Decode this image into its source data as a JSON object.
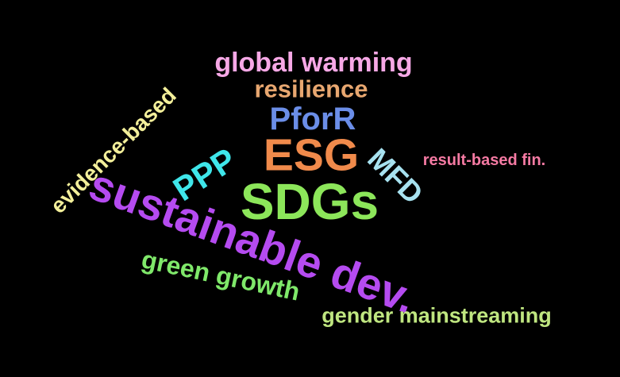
{
  "word_cloud": {
    "background": "#000000",
    "words": {
      "global_warming": {
        "text": "global warming",
        "color": "#f7a8e6"
      },
      "resilience": {
        "text": "resilience",
        "color": "#e8a770"
      },
      "pforr": {
        "text": "PforR",
        "color": "#6b8ee8"
      },
      "esg": {
        "text": "ESG",
        "color": "#f08a4b"
      },
      "sdgs": {
        "text": "SDGs",
        "color": "#8ce65a"
      },
      "ppp": {
        "text": "PPP",
        "color": "#3fe6ea"
      },
      "mfd": {
        "text": "MFD",
        "color": "#a7e2f0"
      },
      "result_based": {
        "text": "result-based fin.",
        "color": "#f57aa3"
      },
      "evidence_based": {
        "text": "evidence-based",
        "color": "#f3ef9a"
      },
      "sustainable_dev": {
        "text": "sustainable dev.",
        "color": "#b54bf0"
      },
      "green_growth": {
        "text": "green growth",
        "color": "#7fe86a"
      },
      "gender_mainstreaming": {
        "text": "gender mainstreaming",
        "color": "#bfe680"
      }
    }
  }
}
